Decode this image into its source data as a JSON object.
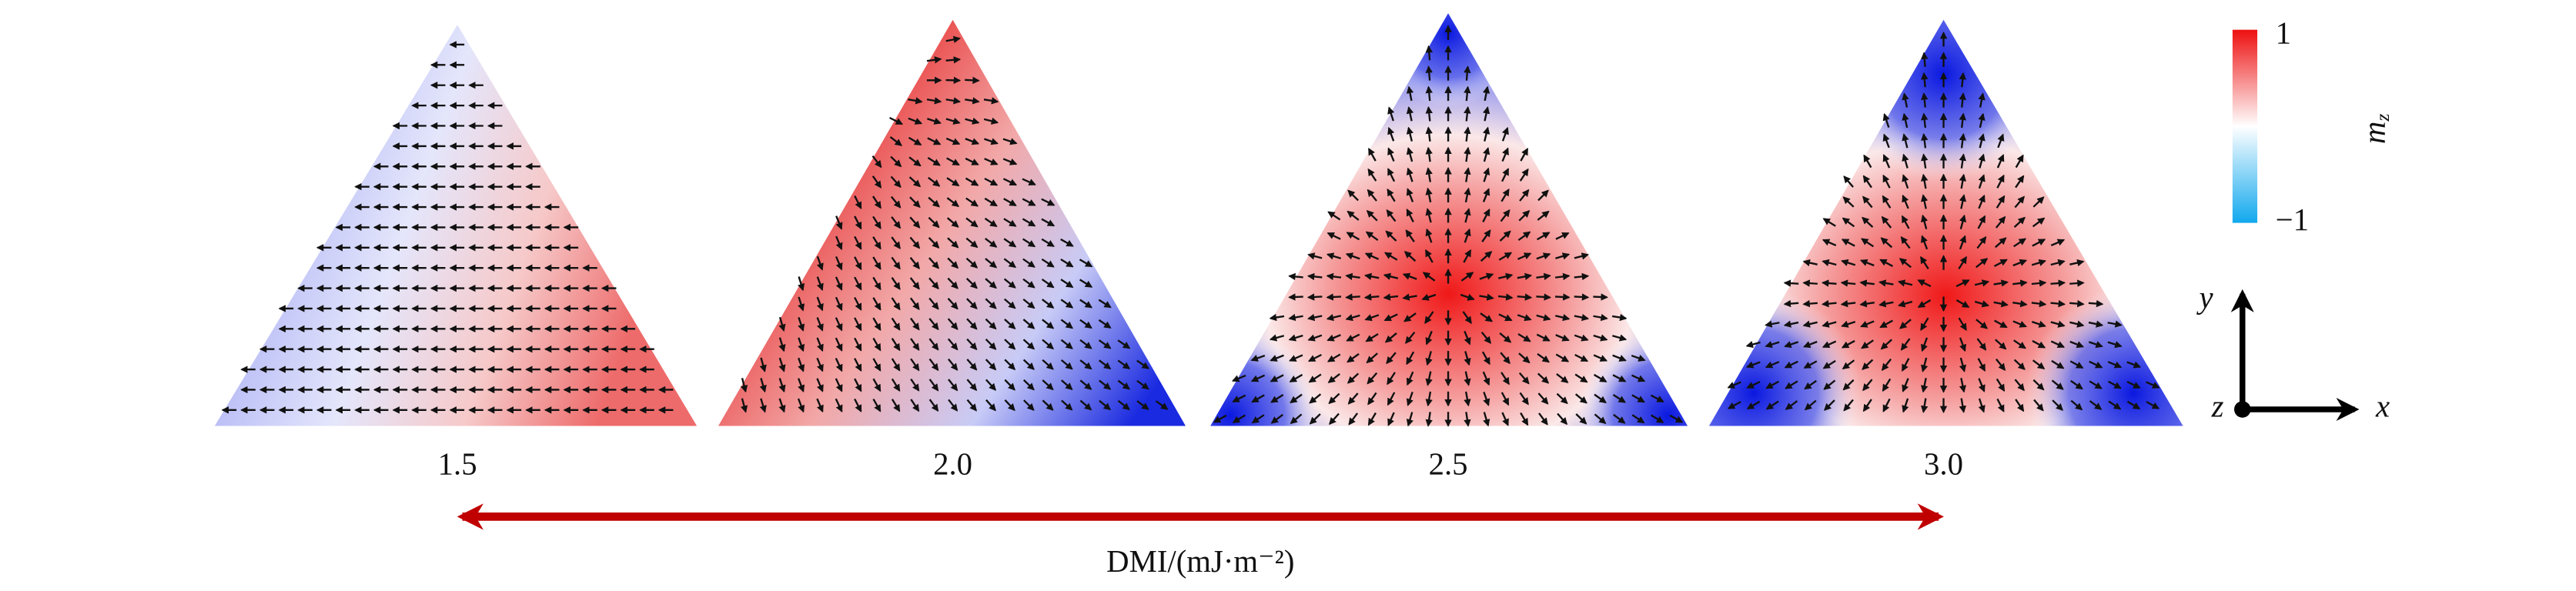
{
  "panels": [
    {
      "label": "1.5"
    },
    {
      "label": "2.0"
    },
    {
      "label": "2.5"
    },
    {
      "label": "3.0"
    }
  ],
  "axis_label": "DMI/(mJ·m⁻²)",
  "colorbar": {
    "max_label": "1",
    "min_label": "−1",
    "symbol": "m",
    "subscript": "z"
  },
  "axes": {
    "x": "x",
    "y": "y",
    "z": "z"
  }
}
